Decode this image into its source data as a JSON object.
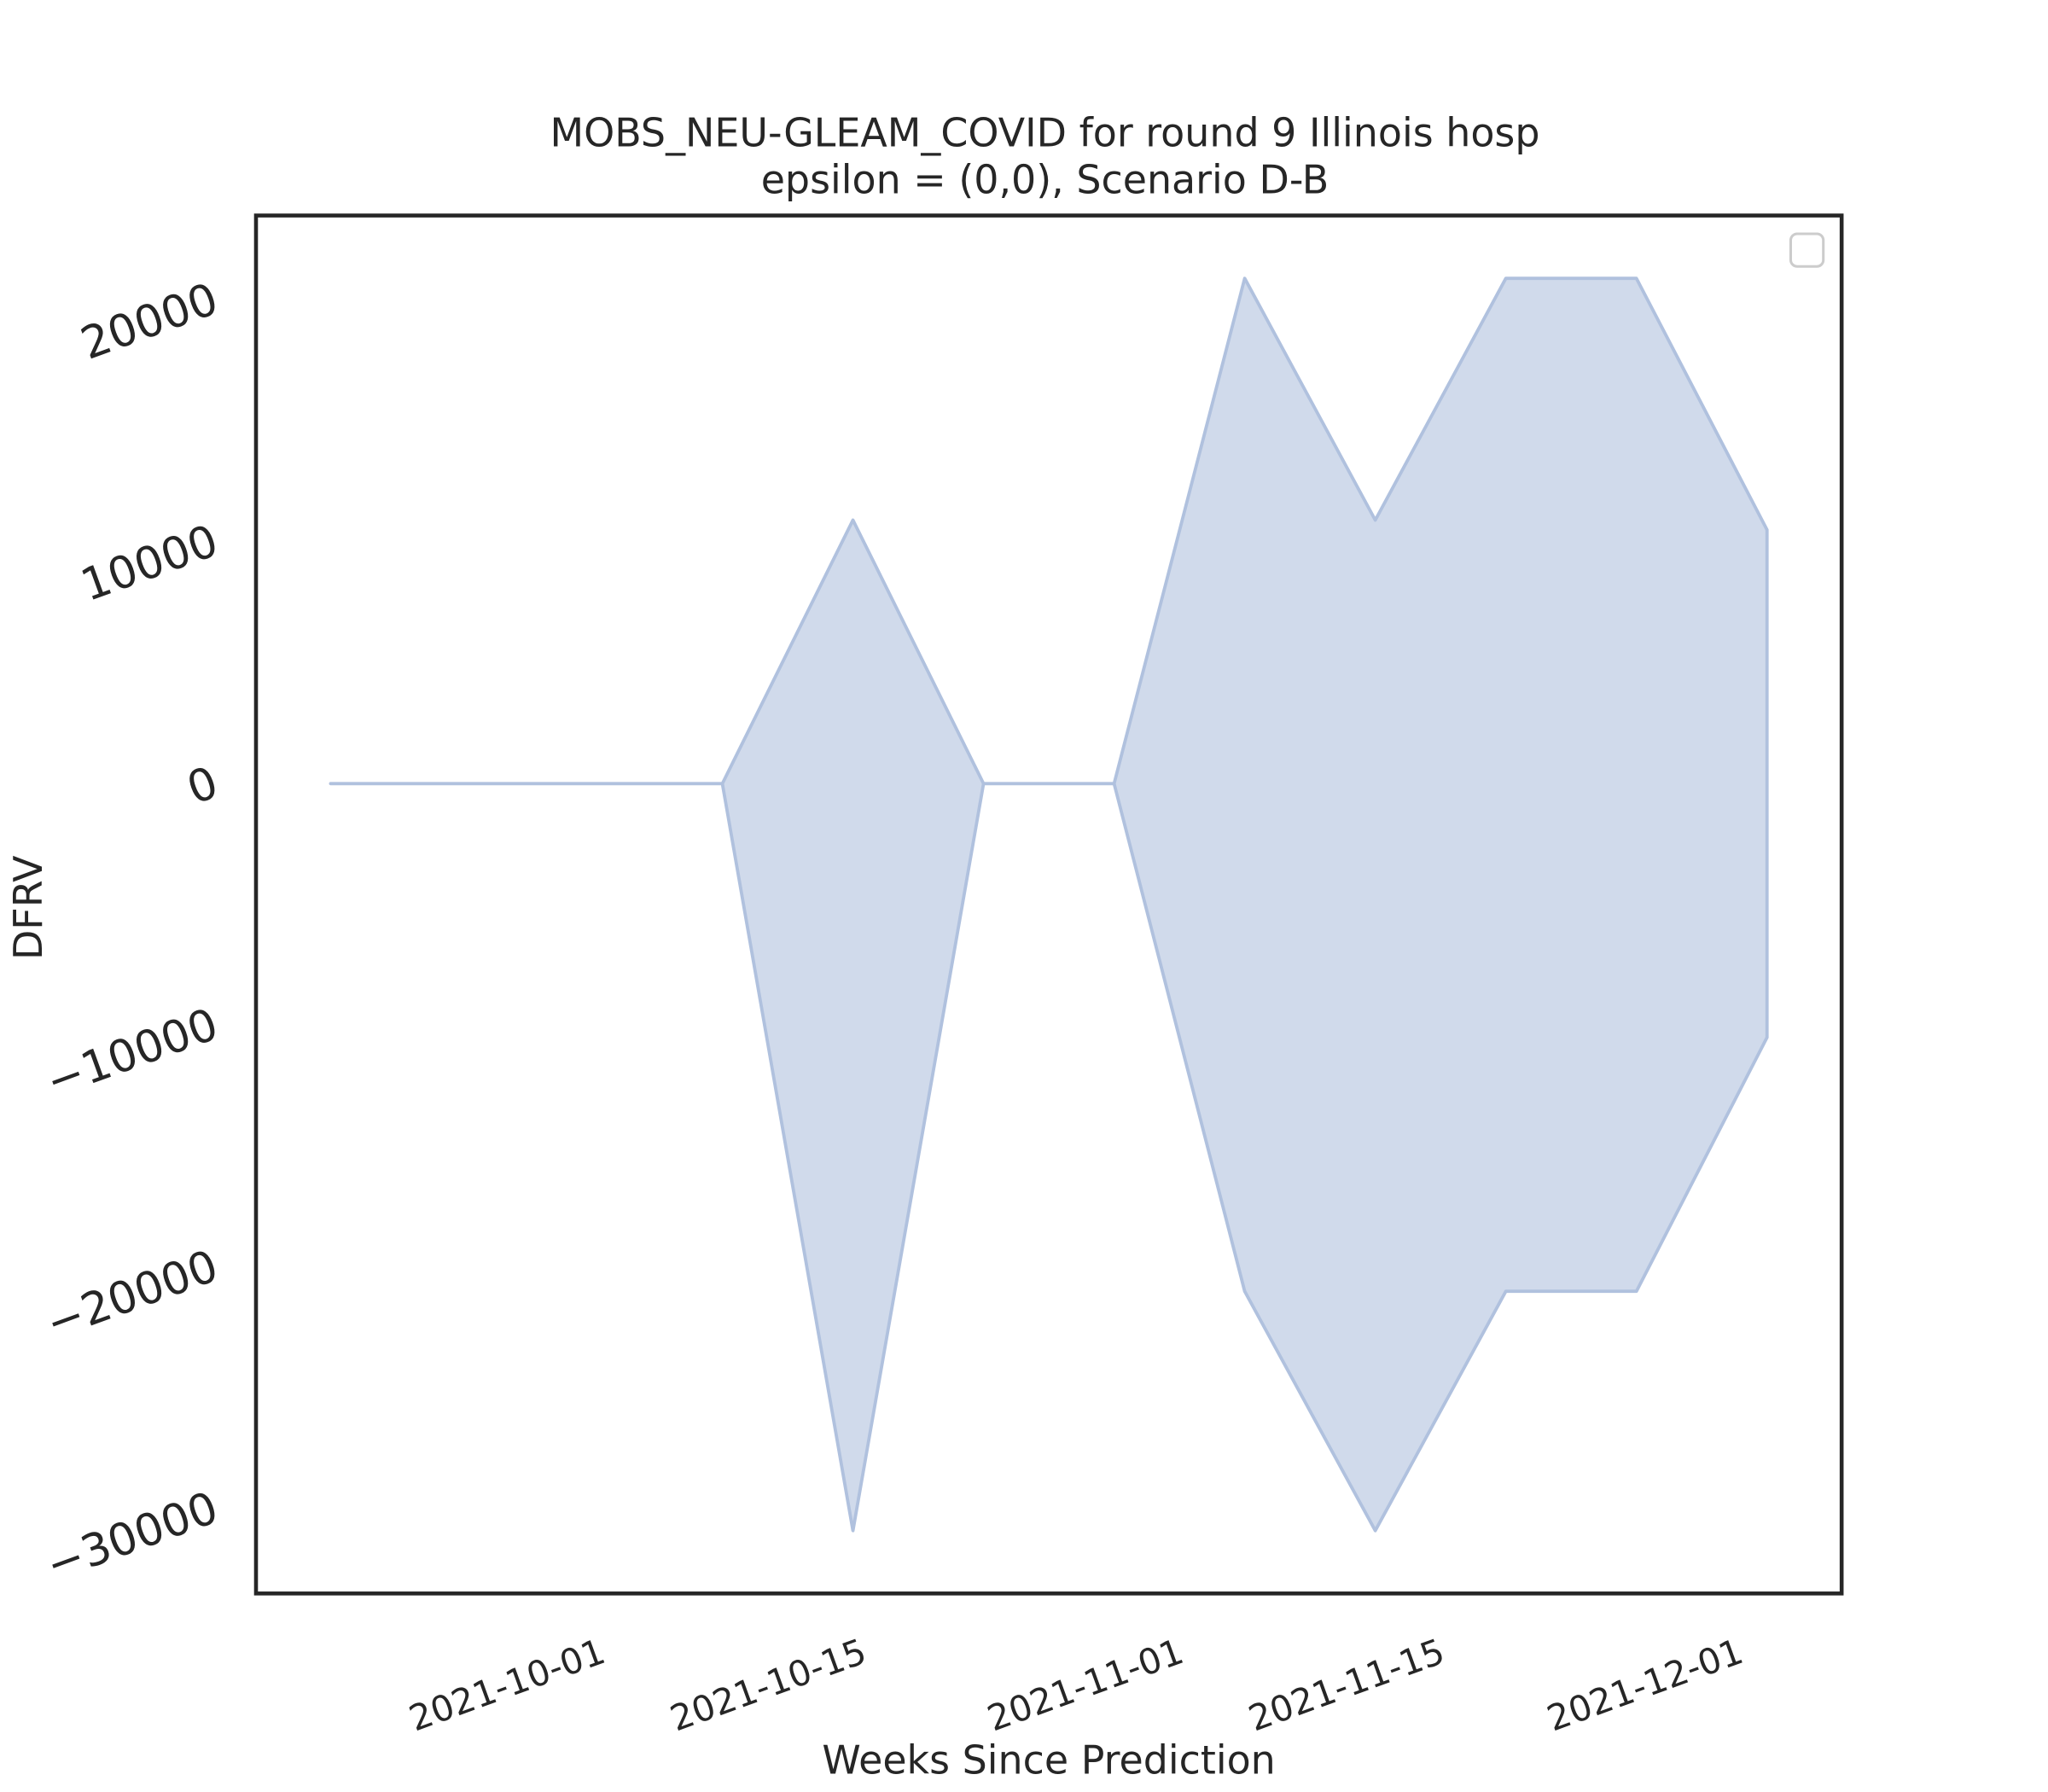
{
  "chart_data": {
    "type": "area",
    "title": "MOBS_NEU-GLEAM_COVID for round 9 Illinois hosp",
    "subtitle": "epsilon = (0,0), Scenario D-B",
    "x_label": "Weeks Since Prediction",
    "y_label": "DFRV",
    "x": [
      "2021-09-17",
      "2021-09-24",
      "2021-10-01",
      "2021-10-08",
      "2021-10-15",
      "2021-10-22",
      "2021-10-29",
      "2021-11-05",
      "2021-11-12",
      "2021-11-19",
      "2021-11-26",
      "2021-12-03"
    ],
    "upper": [
      0,
      0,
      0,
      0,
      10900,
      0,
      0,
      20900,
      10900,
      20900,
      20900,
      10500
    ],
    "lower": [
      0,
      0,
      0,
      0,
      -30900,
      0,
      0,
      -21000,
      -30900,
      -21000,
      -21000,
      -10500
    ],
    "color": "#b0c1de",
    "xlim": [
      "2021-09-13",
      "2021-12-07"
    ],
    "xticks": [
      "2021-10-01",
      "2021-10-15",
      "2021-11-01",
      "2021-11-15",
      "2021-12-01"
    ],
    "ylim": [
      -33500,
      23500
    ],
    "yticks": [
      {
        "value": -30000,
        "label": "−30000"
      },
      {
        "value": -20000,
        "label": "−20000"
      },
      {
        "value": -10000,
        "label": "−10000"
      },
      0,
      10000,
      20000
    ],
    "grid": false
  }
}
